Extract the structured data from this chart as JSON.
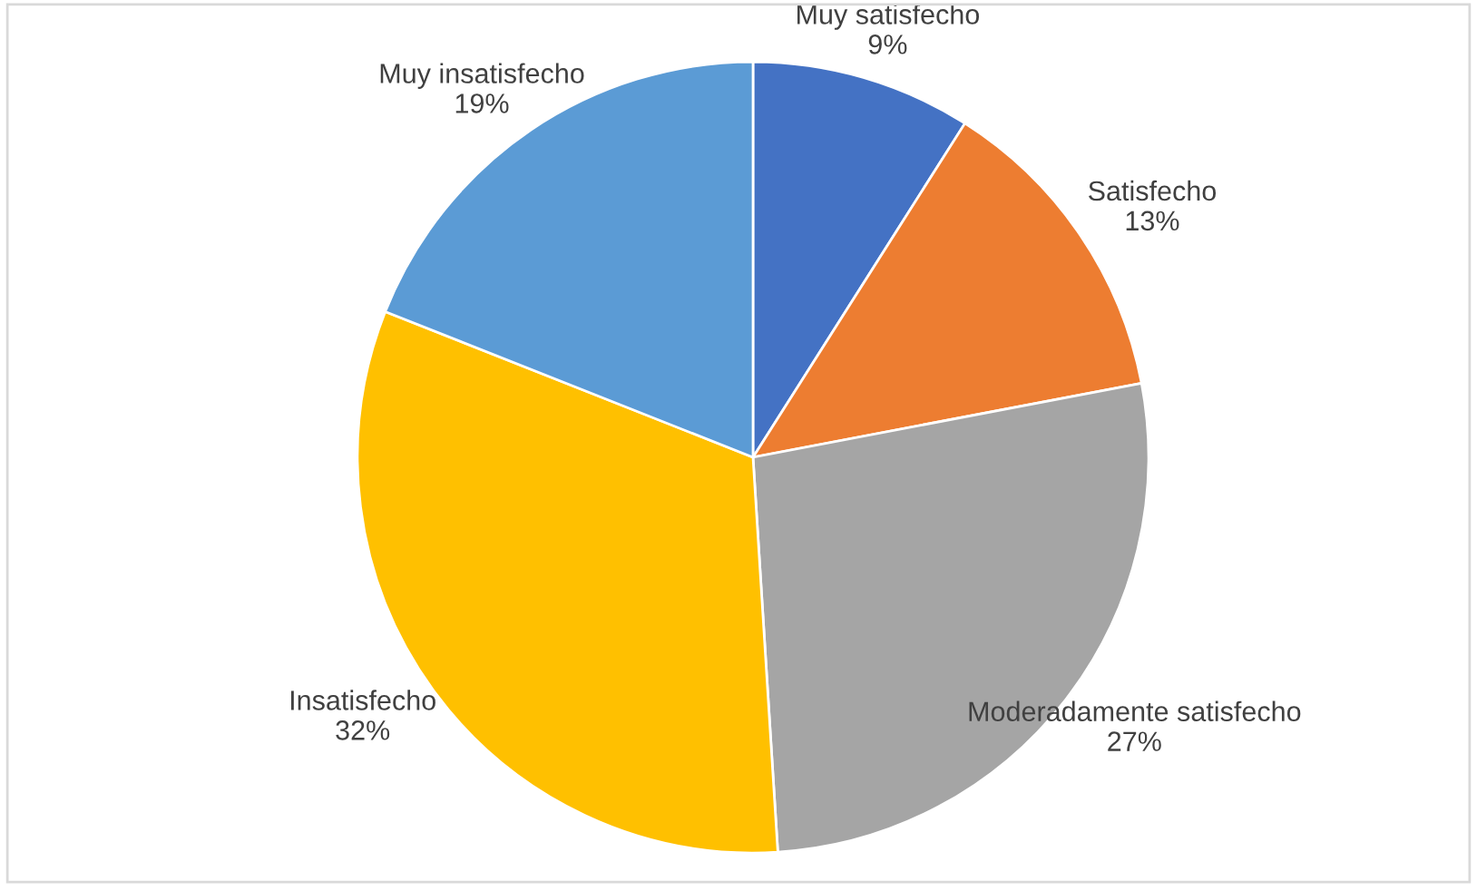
{
  "chart_data": {
    "type": "pie",
    "categories": [
      "Muy satisfecho",
      "Satisfecho",
      "Moderadamente satisfecho",
      "Insatisfecho",
      "Muy insatisfecho"
    ],
    "values": [
      9,
      13,
      27,
      32,
      19
    ],
    "colors": [
      "#4472c4",
      "#ed7d31",
      "#a5a5a5",
      "#ffc000",
      "#5b9bd5"
    ],
    "value_labels": [
      "9%",
      "13%",
      "27%",
      "32%",
      "19%"
    ]
  }
}
